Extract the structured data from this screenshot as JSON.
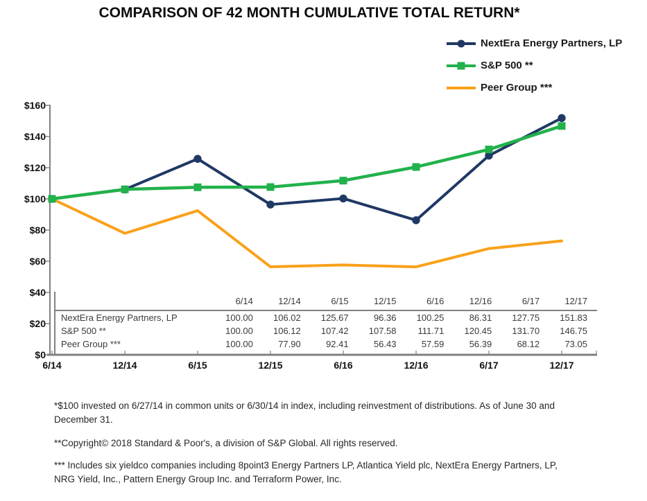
{
  "title": "COMPARISON OF 42 MONTH CUMULATIVE TOTAL RETURN*",
  "chart_data": {
    "type": "line",
    "title": "COMPARISON OF 42 MONTH CUMULATIVE TOTAL RETURN*",
    "categories": [
      "6/14",
      "12/14",
      "6/15",
      "12/15",
      "6/16",
      "12/16",
      "6/17",
      "12/17"
    ],
    "series": [
      {
        "name": "NextEra Energy Partners, LP",
        "marker": "circle",
        "color": "#1F3864",
        "values": [
          100.0,
          106.02,
          125.67,
          96.36,
          100.25,
          86.31,
          127.75,
          151.83
        ]
      },
      {
        "name": "S&P 500 **",
        "marker": "square",
        "color": "#22B14C",
        "values": [
          100.0,
          106.12,
          107.42,
          107.58,
          111.71,
          120.45,
          131.7,
          146.75
        ]
      },
      {
        "name": "Peer Group ***",
        "marker": "none",
        "color": "#F9A11B",
        "values": [
          100.0,
          77.9,
          92.41,
          56.43,
          57.59,
          56.39,
          68.12,
          73.05
        ]
      }
    ],
    "ylim": [
      0,
      160
    ],
    "ytick_step": 20,
    "ytick_prefix": "$",
    "grid": false,
    "legend_position": "top-right",
    "axis_color": "#808080",
    "value_decimals": 2
  },
  "footnotes": [
    "*$100 invested on 6/27/14 in common units or 6/30/14 in index, including reinvestment of distributions. As of June 30 and December 31.",
    "**Copyright© 2018 Standard & Poor's, a division of S&P Global. All rights reserved.",
    "*** Includes six yieldco companies including 8point3 Energy Partners LP, Atlantica Yield plc, NextEra Energy Partners, LP, NRG Yield, Inc., Pattern Energy Group Inc. and Terraform Power, Inc."
  ]
}
